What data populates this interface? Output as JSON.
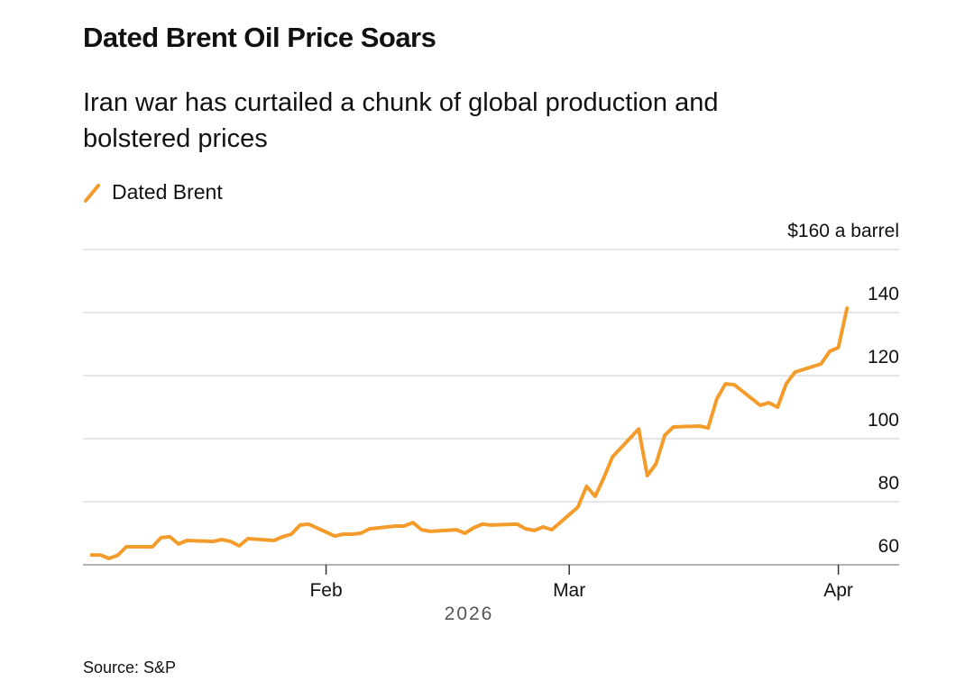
{
  "chart_data": {
    "type": "line",
    "title": "Dated Brent Oil Price Soars",
    "subtitle": "Iran war has curtailed a chunk of global production and bolstered prices",
    "xlabel": "2026",
    "source": "Source: S&P",
    "x": [
      5,
      6,
      7,
      8,
      9,
      12,
      13,
      14,
      15,
      16,
      19,
      20,
      21,
      22,
      23,
      26,
      27,
      28,
      29,
      30,
      33,
      34,
      35,
      36,
      37,
      40,
      41,
      42,
      43,
      44,
      47,
      48,
      49,
      50,
      51,
      54,
      55,
      56,
      57,
      58,
      61,
      62,
      63,
      64,
      65,
      68,
      69,
      70,
      71,
      72,
      75,
      76,
      77,
      78,
      79,
      82,
      83,
      84,
      85,
      86,
      89,
      90,
      91,
      92
    ],
    "series": [
      {
        "name": "Dated Brent",
        "color": "#f39c2b",
        "values": [
          63.1,
          63.1,
          62,
          63,
          65.7,
          65.7,
          68.6,
          68.9,
          66.6,
          67.7,
          67.4,
          68,
          67.4,
          66,
          68.3,
          67.7,
          68.9,
          69.7,
          72.6,
          72.9,
          69.1,
          69.7,
          69.7,
          70,
          71.4,
          72.3,
          72.3,
          73.4,
          71.1,
          70.6,
          71.1,
          70,
          71.7,
          72.9,
          72.6,
          72.9,
          71.4,
          70.9,
          72,
          71.1,
          78.3,
          84.9,
          81.7,
          87.7,
          94.3,
          103.1,
          88.3,
          92,
          101.1,
          103.7,
          104,
          103.4,
          112.6,
          117.4,
          117.1,
          110.6,
          111.4,
          110,
          117.4,
          121.1,
          123.7,
          127.7,
          128.9,
          141.4
        ]
      }
    ],
    "xlim": [
      4,
      98
    ],
    "xticks": [
      {
        "value": 32,
        "label": "Feb"
      },
      {
        "value": 60,
        "label": "Mar"
      },
      {
        "value": 91,
        "label": "Apr"
      }
    ],
    "ylim": [
      60,
      160
    ],
    "yticks": [
      60,
      80,
      100,
      120,
      140,
      {
        "value": 160,
        "label": "$160 a barrel"
      }
    ],
    "grid": true
  }
}
